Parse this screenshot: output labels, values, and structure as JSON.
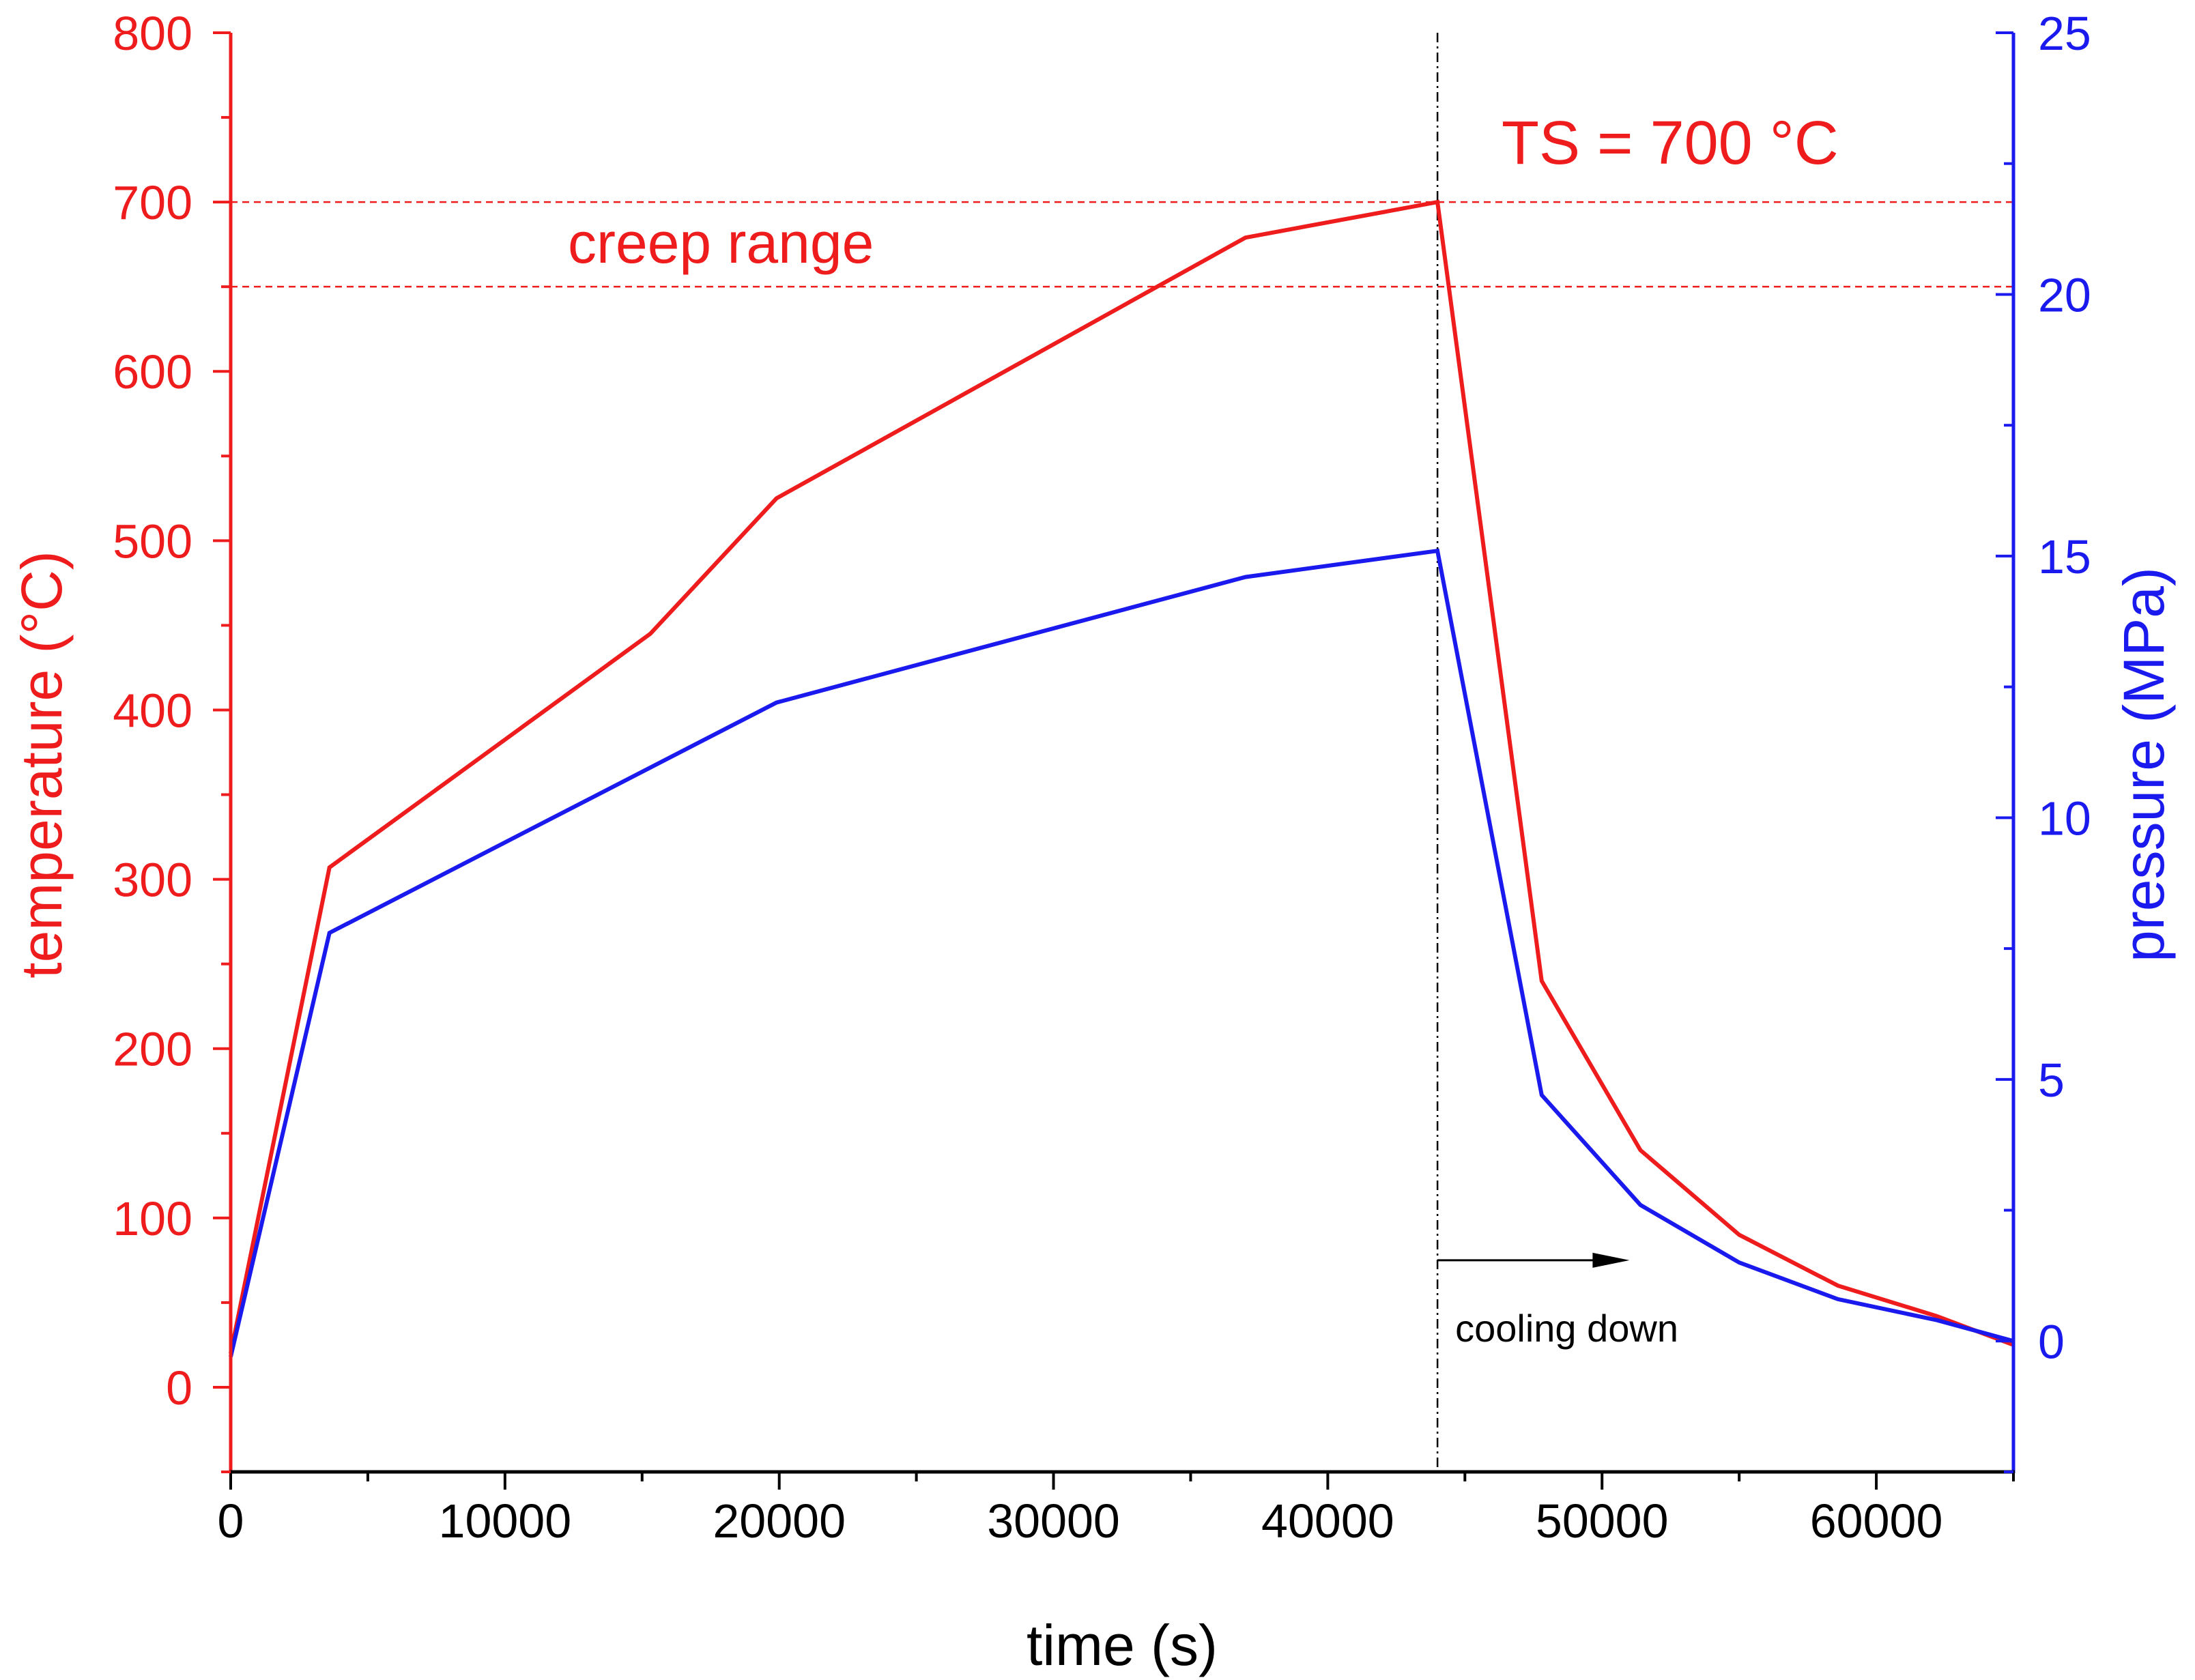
{
  "chart_data": {
    "type": "line",
    "colors": {
      "temperature": "#ee1c1c",
      "pressure": "#1a1aee",
      "axis_x": "#000000",
      "annotation": "#000000"
    },
    "x_axis": {
      "label": "time (s)",
      "range": [
        0,
        65000
      ],
      "ticks": [
        0,
        10000,
        20000,
        30000,
        40000,
        50000,
        60000
      ],
      "tick_labels": [
        "0",
        "10000",
        "20000",
        "30000",
        "40000",
        "50000",
        "60000"
      ]
    },
    "y_left": {
      "label": "temperature (°C)",
      "range": [
        -50,
        800
      ],
      "ticks": [
        0,
        100,
        200,
        300,
        400,
        500,
        600,
        700,
        800
      ],
      "tick_labels": [
        "0",
        "100",
        "200",
        "300",
        "400",
        "500",
        "600",
        "700",
        "800"
      ]
    },
    "y_right": {
      "label": "pressure (MPa)",
      "range": [
        -2.5,
        25
      ],
      "ticks": [
        0,
        5,
        10,
        15,
        20,
        25
      ],
      "tick_labels": [
        "0",
        "5",
        "10",
        "15",
        "20",
        "25"
      ]
    },
    "series": [
      {
        "key": "temperature",
        "axis": "left",
        "points": [
          [
            0,
            20
          ],
          [
            3600,
            307
          ],
          [
            15300,
            445
          ],
          [
            19900,
            525
          ],
          [
            37000,
            679
          ],
          [
            44000,
            700
          ],
          [
            47800,
            240
          ],
          [
            51400,
            140
          ],
          [
            55000,
            90
          ],
          [
            58600,
            60
          ],
          [
            62200,
            42
          ],
          [
            65000,
            25
          ]
        ]
      },
      {
        "key": "pressure",
        "axis": "right",
        "points": [
          [
            0,
            -0.3
          ],
          [
            3600,
            7.8
          ],
          [
            19900,
            12.2
          ],
          [
            37000,
            14.6
          ],
          [
            44000,
            15.1
          ],
          [
            47800,
            4.7
          ],
          [
            51400,
            2.6
          ],
          [
            55000,
            1.5
          ],
          [
            58600,
            0.8
          ],
          [
            62200,
            0.4
          ],
          [
            65000,
            0.0
          ]
        ]
      }
    ],
    "reference_lines": [
      {
        "key": "ts",
        "axis": "left",
        "value": 700
      },
      {
        "key": "creep_low",
        "axis": "left",
        "value": 650
      }
    ],
    "vertical_marker": {
      "x": 44000
    },
    "annotations": {
      "ts_label": "TS = 700 °C",
      "creep_label": "creep range",
      "cooling_label": "cooling down",
      "cooling_arrow": {
        "from": 44000,
        "to": 51000,
        "y": 75
      }
    }
  }
}
